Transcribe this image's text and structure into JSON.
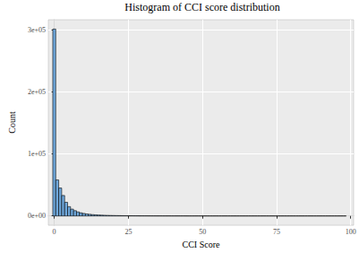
{
  "chart_data": {
    "type": "histogram",
    "title": "Histogram of CCI score distribution",
    "x_label": "CCI Score",
    "y_label": "Count",
    "color": "#6fa8dc",
    "grid": true,
    "bins": [
      -0.5,
      0.5,
      1.5,
      2.5,
      3.5,
      4.5,
      5.5,
      6.5,
      7.5,
      8.5,
      9.5,
      10.5,
      11.5,
      12.5,
      13.5,
      14.5,
      15.5,
      16.5,
      17.5,
      18.5,
      19.5,
      20.5,
      21.5,
      22.5,
      23.5,
      24.5,
      25.5,
      26.5,
      27.5,
      28.5,
      29.5,
      30.5,
      31.5,
      32.5,
      33.5,
      34.5,
      35.5,
      36.5,
      37.5,
      38.5,
      39.5,
      40.5,
      41.5,
      42.5,
      43.5,
      44.5,
      45.5,
      46.5,
      47.5,
      48.5,
      49.5,
      50.5,
      51.5,
      52.5,
      53.5,
      54.5,
      55.5,
      56.5,
      57.5,
      58.5,
      59.5,
      60.5,
      61.5,
      62.5,
      63.5,
      64.5,
      65.5,
      66.5,
      67.5,
      68.5,
      69.5,
      70.5,
      71.5,
      72.5,
      73.5,
      74.5,
      75.5,
      76.5,
      77.5,
      78.5,
      79.5,
      80.5,
      81.5,
      82.5,
      83.5,
      84.5,
      85.5,
      86.5,
      87.5,
      88.5,
      89.5,
      90.5,
      91.5,
      92.5,
      93.5,
      94.5,
      95.5,
      96.5,
      97.5,
      98.5
    ],
    "values": [
      301000,
      58000,
      45000,
      33000,
      22000,
      15000,
      11000,
      8500,
      6500,
      5000,
      4000,
      3200,
      2600,
      2100,
      1800,
      1500,
      1300,
      1100,
      950,
      820,
      700,
      600,
      520,
      450,
      390,
      340,
      300,
      260,
      230,
      200,
      180,
      160,
      145,
      130,
      118,
      106,
      96,
      87,
      79,
      72,
      65,
      59,
      54,
      49,
      45,
      41,
      37,
      34,
      31,
      28,
      26,
      24,
      22,
      20,
      18,
      17,
      15,
      14,
      13,
      12,
      11,
      10,
      9,
      9,
      8,
      7,
      7,
      6,
      6,
      5,
      5,
      5,
      4,
      4,
      4,
      3,
      3,
      3,
      3,
      2,
      2,
      2,
      2,
      2,
      2,
      1,
      1,
      1,
      1,
      1,
      1,
      1,
      1,
      1,
      1,
      1,
      1,
      1,
      1
    ],
    "xlim": [
      -2,
      101
    ],
    "xticks": [
      0,
      25,
      50,
      75,
      100
    ],
    "ylim": [
      -15000,
      316000
    ],
    "yticks": [
      {
        "value": 0,
        "label": "0e+00"
      },
      {
        "value": 100000,
        "label": "1e+05"
      },
      {
        "value": 200000,
        "label": "2e+05"
      },
      {
        "value": 300000,
        "label": "3e+05"
      }
    ]
  }
}
